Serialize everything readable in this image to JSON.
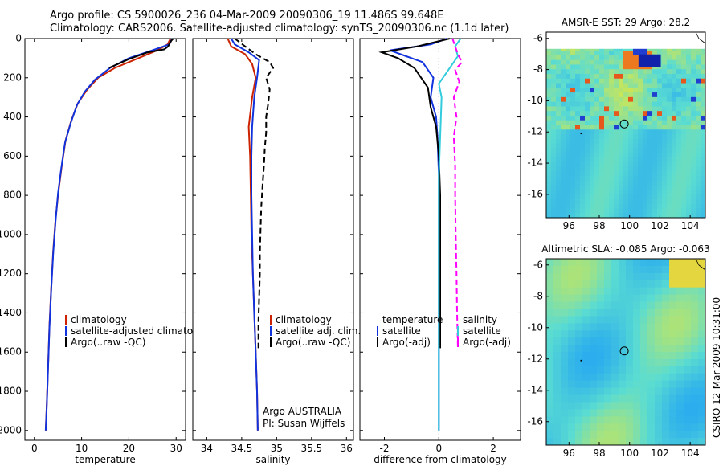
{
  "header": {
    "line1": "Argo profile: CS 5900026_236 04-Mar-2009 20090306_19 11.486S 99.648E",
    "line2": "Climatology: CARS2006. Satellite-adjusted climatology: synTS_20090306.nc (1.1d later)"
  },
  "footer_credit": "CSIRO 12-Mar-2009 10:31:00",
  "colors": {
    "red": "#cc2200",
    "blue": "#1133dd",
    "black": "#000000",
    "magenta": "#ff00ff",
    "cyan": "#33ccdd"
  },
  "chart_data": [
    {
      "type": "line",
      "id": "temperature",
      "xlabel": "temperature",
      "xlim": [
        -2,
        32
      ],
      "ylim": [
        0,
        2050
      ],
      "xticks": [
        0,
        10,
        20,
        30
      ],
      "yticks": [
        0,
        200,
        400,
        600,
        800,
        1000,
        1200,
        1400,
        1600,
        1800,
        2000
      ],
      "legend": [
        "climatology",
        "satellite-adjusted climatology",
        "Argo(..raw -QC)"
      ],
      "series": [
        {
          "name": "climatology",
          "color": "red",
          "points": [
            [
              28.8,
              0
            ],
            [
              28.2,
              30
            ],
            [
              26,
              60
            ],
            [
              22,
              100
            ],
            [
              17,
              150
            ],
            [
              13.5,
              200
            ],
            [
              11.2,
              260
            ],
            [
              9.2,
              330
            ],
            [
              7.8,
              420
            ],
            [
              6.6,
              520
            ],
            [
              5.8,
              650
            ],
            [
              5.1,
              780
            ],
            [
              4.5,
              920
            ],
            [
              4,
              1080
            ],
            [
              3.6,
              1260
            ],
            [
              3.2,
              1460
            ],
            [
              2.9,
              1680
            ],
            [
              2.6,
              1880
            ],
            [
              2.4,
              2000
            ]
          ]
        },
        {
          "name": "satellite-adjusted climatology",
          "color": "blue",
          "points": [
            [
              29.2,
              0
            ],
            [
              28.5,
              30
            ],
            [
              25,
              60
            ],
            [
              20,
              100
            ],
            [
              16,
              150
            ],
            [
              12.8,
              210
            ],
            [
              10.7,
              270
            ],
            [
              9,
              340
            ],
            [
              7.7,
              430
            ],
            [
              6.5,
              530
            ],
            [
              5.7,
              660
            ],
            [
              5,
              790
            ],
            [
              4.5,
              930
            ],
            [
              4,
              1090
            ],
            [
              3.6,
              1270
            ],
            [
              3.2,
              1470
            ],
            [
              2.9,
              1690
            ],
            [
              2.6,
              1890
            ],
            [
              2.4,
              2000
            ]
          ]
        },
        {
          "name": "Argo",
          "color": "black",
          "points": [
            [
              29.4,
              0
            ],
            [
              29,
              10
            ],
            [
              28.3,
              40
            ],
            [
              27.5,
              55
            ],
            [
              24,
              70
            ],
            [
              20,
              105
            ],
            [
              15.8,
              150
            ]
          ]
        }
      ]
    },
    {
      "type": "line",
      "id": "salinity",
      "xlabel": "salinity",
      "xlim": [
        33.8,
        36.1
      ],
      "ylim": [
        0,
        2050
      ],
      "xticks": [
        34,
        34.5,
        35,
        35.5,
        36
      ],
      "legend": [
        "climatology",
        "satellite adj. clim.",
        "Argo(..raw -QC)"
      ],
      "annotations": [
        "Argo AUSTRALIA",
        "PI: Susan Wijffels"
      ],
      "series": [
        {
          "name": "climatology",
          "color": "red",
          "points": [
            [
              34.3,
              0
            ],
            [
              34.35,
              40
            ],
            [
              34.55,
              80
            ],
            [
              34.65,
              130
            ],
            [
              34.7,
              200
            ],
            [
              34.65,
              300
            ],
            [
              34.6,
              450
            ],
            [
              34.62,
              600
            ],
            [
              34.63,
              800
            ],
            [
              34.64,
              1000
            ],
            [
              34.66,
              1200
            ],
            [
              34.68,
              1400
            ],
            [
              34.7,
              1600
            ],
            [
              34.72,
              1800
            ],
            [
              34.73,
              2000
            ]
          ]
        },
        {
          "name": "satellite adj. clim.",
          "color": "blue",
          "points": [
            [
              34.35,
              0
            ],
            [
              34.4,
              30
            ],
            [
              34.6,
              70
            ],
            [
              34.75,
              110
            ],
            [
              34.72,
              200
            ],
            [
              34.68,
              300
            ],
            [
              34.65,
              450
            ],
            [
              34.64,
              600
            ],
            [
              34.64,
              800
            ],
            [
              34.65,
              1000
            ],
            [
              34.66,
              1200
            ],
            [
              34.68,
              1400
            ],
            [
              34.7,
              1600
            ],
            [
              34.72,
              1800
            ],
            [
              34.73,
              2000
            ]
          ]
        },
        {
          "name": "Argo",
          "color": "black",
          "dashed": true,
          "points": [
            [
              34.4,
              0
            ],
            [
              34.55,
              40
            ],
            [
              34.7,
              80
            ],
            [
              34.9,
              120
            ],
            [
              34.95,
              150
            ],
            [
              34.85,
              200
            ],
            [
              34.9,
              260
            ],
            [
              34.88,
              330
            ],
            [
              34.85,
              400
            ],
            [
              34.85,
              480
            ],
            [
              34.83,
              560
            ],
            [
              34.82,
              640
            ],
            [
              34.8,
              740
            ],
            [
              34.78,
              860
            ],
            [
              34.77,
              980
            ],
            [
              34.76,
              1100
            ],
            [
              34.76,
              1200
            ],
            [
              34.75,
              1320
            ],
            [
              34.74,
              1450
            ],
            [
              34.74,
              1580
            ]
          ]
        }
      ]
    },
    {
      "type": "line",
      "id": "difference",
      "xlabel": "difference from climatology",
      "xlim": [
        -2.9,
        3.0
      ],
      "ylim": [
        0,
        2050
      ],
      "xticks": [
        -2,
        0,
        2
      ],
      "legend": [
        "temperature",
        "satellite",
        "Argo(-adj)",
        "salinity",
        "satellite",
        "Argo(-adj)"
      ],
      "series": [
        {
          "name": "temperature satellite",
          "color": "blue",
          "points": [
            [
              0.3,
              0
            ],
            [
              -0.3,
              30
            ],
            [
              -1.8,
              60
            ],
            [
              -1.2,
              90
            ],
            [
              -0.6,
              120
            ],
            [
              -0.2,
              200
            ],
            [
              -0.3,
              300
            ],
            [
              -0.1,
              400
            ],
            [
              -0.05,
              500
            ],
            [
              0,
              700
            ],
            [
              0,
              1000
            ],
            [
              0,
              1500
            ],
            [
              0,
              2000
            ]
          ]
        },
        {
          "name": "temperature Argo",
          "color": "black",
          "points": [
            [
              0.4,
              0
            ],
            [
              -0.8,
              40
            ],
            [
              -2.1,
              70
            ],
            [
              -1.5,
              100
            ],
            [
              -0.9,
              150
            ],
            [
              -0.4,
              250
            ],
            [
              -0.3,
              350
            ],
            [
              -0.1,
              450
            ],
            [
              0,
              600
            ],
            [
              0.05,
              800
            ],
            [
              0.05,
              1000
            ],
            [
              0.05,
              1200
            ],
            [
              0.05,
              1400
            ],
            [
              0.05,
              1580
            ]
          ]
        },
        {
          "name": "salinity satellite",
          "color": "cyan",
          "points": [
            [
              0.8,
              0
            ],
            [
              0.6,
              40
            ],
            [
              0.7,
              90
            ],
            [
              0.4,
              150
            ],
            [
              0,
              230
            ],
            [
              0.1,
              300
            ],
            [
              0.05,
              500
            ],
            [
              0,
              700
            ],
            [
              0,
              1000
            ],
            [
              0,
              1500
            ],
            [
              0,
              2000
            ]
          ]
        },
        {
          "name": "salinity Argo",
          "color": "magenta",
          "dashed": true,
          "points": [
            [
              0.5,
              0
            ],
            [
              0.7,
              80
            ],
            [
              0.85,
              120
            ],
            [
              0.6,
              160
            ],
            [
              0.75,
              220
            ],
            [
              0.55,
              300
            ],
            [
              0.65,
              400
            ],
            [
              0.55,
              500
            ],
            [
              0.6,
              650
            ],
            [
              0.6,
              800
            ],
            [
              0.62,
              1000
            ],
            [
              0.65,
              1200
            ],
            [
              0.67,
              1400
            ],
            [
              0.7,
              1580
            ]
          ]
        }
      ]
    },
    {
      "type": "heatmap",
      "id": "sst-map",
      "title": "AMSR-E SST: 29 Argo: 28.2",
      "xlim": [
        94.5,
        105
      ],
      "ylim": [
        -17.5,
        -5.6
      ],
      "xticks": [
        96,
        98,
        100,
        102,
        104
      ],
      "yticks": [
        -6,
        -8,
        -10,
        -12,
        -14,
        -16
      ],
      "marker": {
        "lon": 99.648,
        "lat": -11.486
      }
    },
    {
      "type": "heatmap",
      "id": "sla-map",
      "title": "Altimetric SLA: -0.085 Argo: -0.063",
      "xlim": [
        94.5,
        105
      ],
      "ylim": [
        -17.5,
        -5.6
      ],
      "xticks": [
        96,
        98,
        100,
        102,
        104
      ],
      "yticks": [
        -6,
        -8,
        -10,
        -12,
        -14,
        -16
      ],
      "marker": {
        "lon": 99.648,
        "lat": -11.486
      }
    }
  ]
}
